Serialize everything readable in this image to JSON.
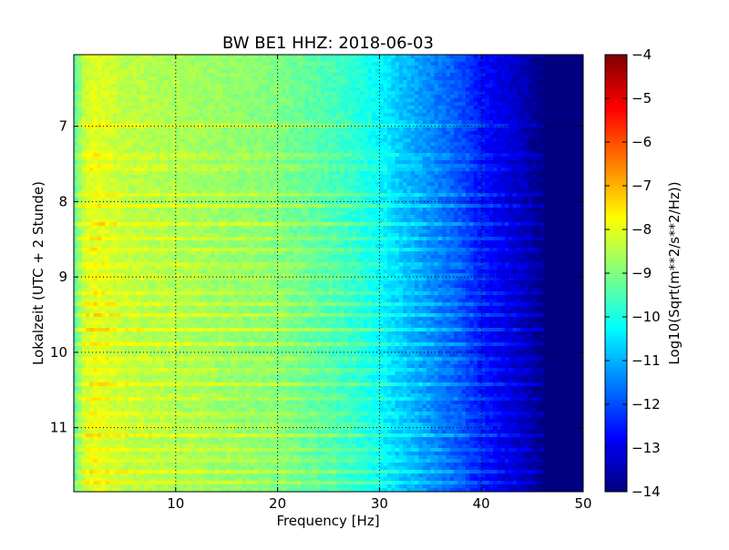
{
  "chart_data": {
    "type": "heatmap",
    "title": "BW BE1 HHZ: 2018-06-03",
    "xlabel": "Frequency [Hz]",
    "ylabel": "Lokalzeit (UTC + 2 Stunde)",
    "xlim": [
      0,
      50
    ],
    "ylim": [
      6.05,
      11.85
    ],
    "y_inverted": true,
    "x_ticks": [
      10,
      20,
      30,
      40,
      50
    ],
    "y_ticks": [
      7,
      8,
      9,
      10,
      11
    ],
    "grid": true,
    "grid_style": "dotted",
    "colormap": "jet",
    "colorbar": {
      "label": "Log10(Sqrt(m**2/s**2/Hz))",
      "range": [
        -14,
        -4
      ],
      "ticks": [
        -4,
        -5,
        -6,
        -7,
        -8,
        -9,
        -10,
        -11,
        -12,
        -13,
        -14
      ]
    },
    "spectral_profile": {
      "frequency_hz": [
        0,
        1,
        2,
        5,
        10,
        15,
        20,
        25,
        28,
        30,
        32,
        34,
        36,
        38,
        40,
        42,
        44,
        45,
        46,
        50
      ],
      "level": [
        -9.5,
        -8.3,
        -8.0,
        -8.4,
        -8.6,
        -8.8,
        -9.0,
        -9.5,
        -9.9,
        -10.3,
        -10.8,
        -11.2,
        -11.6,
        -12.0,
        -12.6,
        -13.0,
        -13.4,
        -13.7,
        -14.0,
        -14.0
      ]
    },
    "noise_bands_hours": [
      6.98,
      7.4,
      7.55,
      7.9,
      8.05,
      8.3,
      8.48,
      8.65,
      8.85,
      9.0,
      9.2,
      9.35,
      9.5,
      9.7,
      9.9,
      10.1,
      10.25,
      10.42,
      10.6,
      10.83,
      10.98,
      11.1,
      11.28,
      11.42,
      11.58,
      11.72
    ]
  }
}
